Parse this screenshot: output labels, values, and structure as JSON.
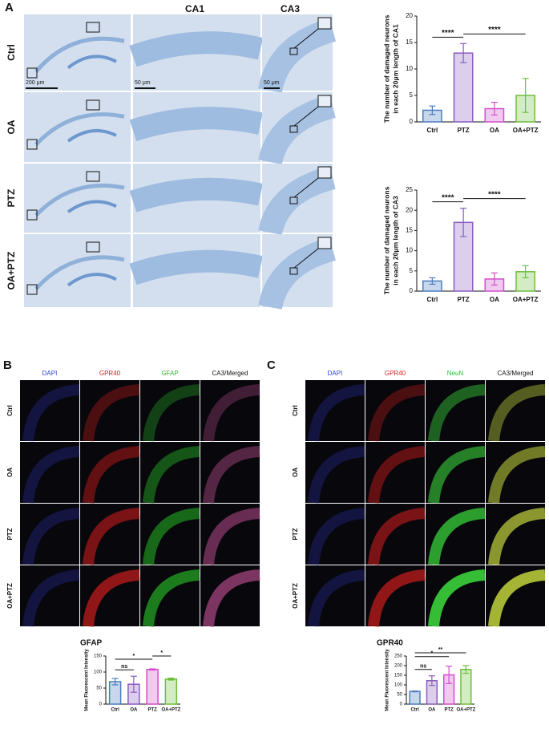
{
  "figure": {
    "A": {
      "label": "A",
      "columns": [
        "CA1",
        "CA3"
      ],
      "rows": [
        "Ctrl",
        "OA",
        "PTZ",
        "OA+PTZ"
      ],
      "scale_bars": [
        "200 μm",
        "50 μm",
        "50 μm"
      ]
    },
    "B": {
      "label": "B",
      "columns": [
        "DAPI",
        "GPR40",
        "GFAP",
        "CA3/Merged"
      ],
      "column_colors": [
        "#2b3fd6",
        "#d62020",
        "#2fb82f",
        "#111111"
      ],
      "rows": [
        "Ctrl",
        "OA",
        "PTZ",
        "OA+PTZ"
      ]
    },
    "C": {
      "label": "C",
      "columns": [
        "DAPI",
        "GPR40",
        "NeuN",
        "CA3/Merged"
      ],
      "column_colors": [
        "#2b3fd6",
        "#d62020",
        "#2fb82f",
        "#111111"
      ],
      "rows": [
        "Ctrl",
        "OA",
        "PTZ",
        "OA+PTZ"
      ]
    }
  },
  "chart_data": [
    {
      "type": "bar",
      "y_label": [
        "The number of damaged neurons",
        "in each 20μm length of CA1"
      ],
      "categories": [
        "Ctrl",
        "PTZ",
        "OA",
        "OA+PTZ"
      ],
      "values": [
        2.2,
        13,
        2.5,
        5
      ],
      "error": [
        0.8,
        1.8,
        1.2,
        3.2
      ],
      "colors": [
        "#4a7cc0",
        "#8a5cc0",
        "#d24fc9",
        "#6cbf3a"
      ],
      "ylim": [
        0,
        20
      ],
      "yticks": [
        0,
        5,
        10,
        15,
        20
      ],
      "annotations": [
        {
          "text": "****",
          "from": "Ctrl",
          "to": "PTZ"
        },
        {
          "text": "****",
          "from": "PTZ",
          "to": "OA+PTZ"
        }
      ]
    },
    {
      "type": "bar",
      "y_label": [
        "The number of damaged neurons",
        "in each 20μm length of CA3"
      ],
      "categories": [
        "Ctrl",
        "PTZ",
        "OA",
        "OA+PTZ"
      ],
      "values": [
        2.5,
        17,
        3,
        4.8
      ],
      "error": [
        0.8,
        3.5,
        1.5,
        1.5
      ],
      "colors": [
        "#4a7cc0",
        "#8a5cc0",
        "#d24fc9",
        "#6cbf3a"
      ],
      "ylim": [
        0,
        25
      ],
      "yticks": [
        0,
        5,
        10,
        15,
        20,
        25
      ],
      "annotations": [
        {
          "text": "****",
          "from": "Ctrl",
          "to": "PTZ"
        },
        {
          "text": "****",
          "from": "PTZ",
          "to": "OA+PTZ"
        }
      ]
    },
    {
      "type": "bar",
      "title": "GFAP",
      "y_label": [
        "Mean Fluorescent Intensity"
      ],
      "categories": [
        "Ctrl",
        "OA",
        "PTZ",
        "OA+PTZ"
      ],
      "values": [
        70,
        62,
        108,
        78
      ],
      "error": [
        10,
        25,
        2,
        3
      ],
      "colors": [
        "#4a7cc0",
        "#8a5cc0",
        "#d24fc9",
        "#6cbf3a"
      ],
      "ylim": [
        0,
        150
      ],
      "yticks": [
        0,
        50,
        100,
        150
      ],
      "annotations": [
        {
          "text": "ns",
          "from": "Ctrl",
          "to": "OA"
        },
        {
          "text": "*",
          "from": "Ctrl",
          "to": "PTZ"
        },
        {
          "text": "*",
          "from": "PTZ",
          "to": "OA+PTZ"
        }
      ]
    },
    {
      "type": "bar",
      "title": "GPR40",
      "y_label": [
        "Mean Fluorescent Intensity"
      ],
      "categories": [
        "Ctrl",
        "OA",
        "PTZ",
        "OA+PTZ"
      ],
      "values": [
        66,
        122,
        152,
        180
      ],
      "error": [
        2,
        25,
        45,
        20
      ],
      "colors": [
        "#4a7cc0",
        "#8a5cc0",
        "#d24fc9",
        "#6cbf3a"
      ],
      "ylim": [
        0,
        250
      ],
      "yticks": [
        0,
        50,
        100,
        150,
        200,
        250
      ],
      "annotations": [
        {
          "text": "ns",
          "from": "Ctrl",
          "to": "OA"
        },
        {
          "text": "*",
          "from": "Ctrl",
          "to": "PTZ"
        },
        {
          "text": "**",
          "from": "Ctrl",
          "to": "OA+PTZ"
        }
      ]
    }
  ]
}
